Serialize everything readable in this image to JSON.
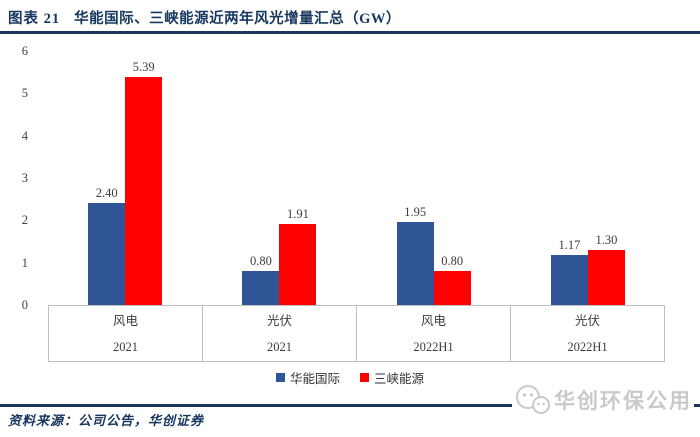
{
  "header": {
    "figure_label": "图表 21",
    "title": "华能国际、三峡能源近两年风光增量汇总（GW）"
  },
  "chart_data": {
    "type": "bar",
    "title": "华能国际、三峡能源近两年风光增量汇总（GW）",
    "categories": [
      {
        "top": "风电",
        "bottom": "2021"
      },
      {
        "top": "光伏",
        "bottom": "2021"
      },
      {
        "top": "风电",
        "bottom": "2022H1"
      },
      {
        "top": "光伏",
        "bottom": "2022H1"
      }
    ],
    "series": [
      {
        "name": "华能国际",
        "color": "#2F5597",
        "values": [
          2.4,
          0.8,
          1.95,
          1.17
        ]
      },
      {
        "name": "三峡能源",
        "color": "#FF0000",
        "values": [
          5.39,
          1.91,
          0.8,
          1.3
        ]
      }
    ],
    "xlabel": "",
    "ylabel": "",
    "ylim": [
      0,
      6
    ],
    "yticks": [
      0,
      1,
      2,
      3,
      4,
      5,
      6
    ],
    "grid": false,
    "legend_position": "bottom",
    "value_label_decimals": 2
  },
  "footer": {
    "source": "资料来源：公司公告，华创证券"
  },
  "watermark": {
    "text": "华创环保公用",
    "icon": "wechat-icon"
  },
  "colors": {
    "accent": "#17375E",
    "axis_border": "#BFBFBF",
    "bar_blue": "#2F5597",
    "bar_red": "#FF0000",
    "watermark_gray": "#c9c9c9"
  }
}
